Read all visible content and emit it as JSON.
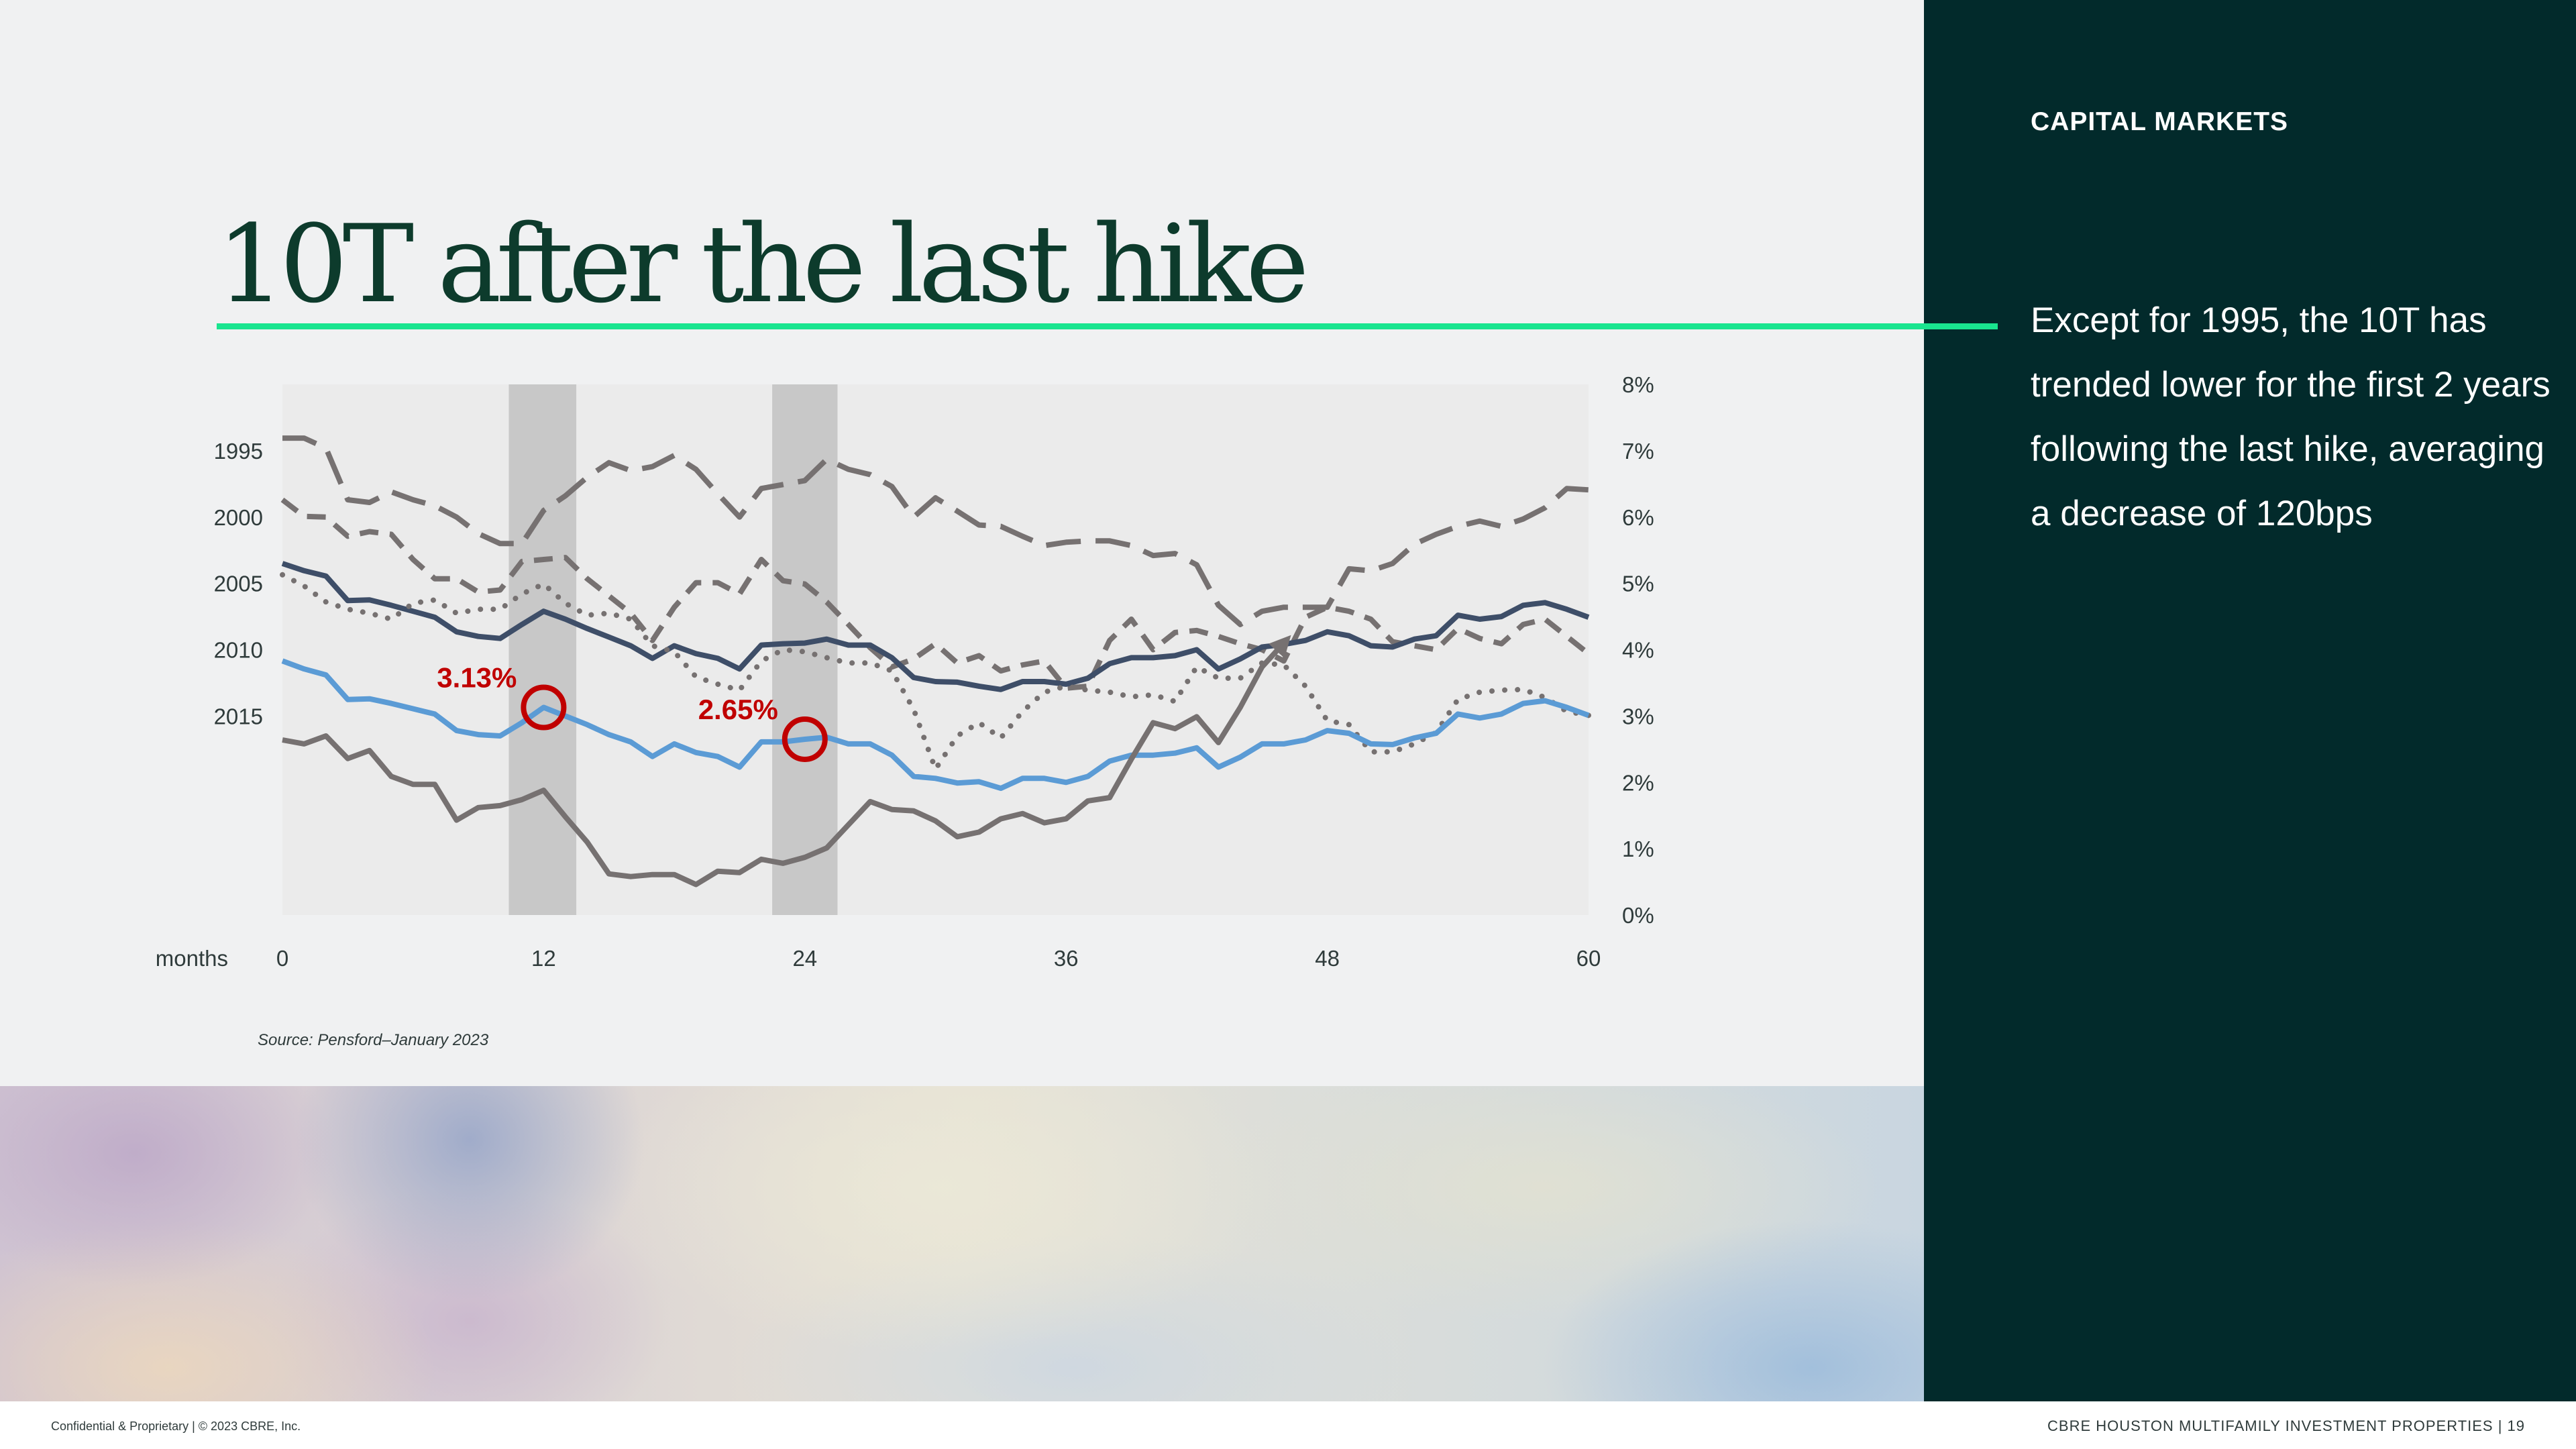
{
  "header": {
    "section": "CAPITAL MARKETS",
    "title": "10T after the last hike"
  },
  "sidebar": {
    "text": "Except for 1995, the 10T has trended lower for the first 2 years following the last hike, averaging a decrease of 120bps"
  },
  "source": "Source:  Pensford–January 2023",
  "footer": {
    "left": "Confidential & Proprietary  |  © 2023 CBRE, Inc.",
    "right": "CBRE HOUSTON MULTIFAMILY INVESTMENT PROPERTIES   |   19"
  },
  "colors": {
    "accent": "#19e58f",
    "panel": "#022a2b",
    "title": "#0d3b2c",
    "gray": "#767171",
    "navy": "#3e4e68",
    "blue": "#5b9bd5",
    "highlight": "#c00000",
    "band": "#c8c8c8",
    "plot_bg": "#ebebeb"
  },
  "chart_data": {
    "type": "line",
    "xlabel": "months",
    "x_ticks": [
      "0",
      "12",
      "24",
      "36",
      "48",
      "60"
    ],
    "xlim": [
      0,
      60
    ],
    "y_ticks": [
      "0%",
      "1%",
      "2%",
      "3%",
      "4%",
      "5%",
      "6%",
      "7%",
      "8%"
    ],
    "ylim": [
      0,
      8
    ],
    "y_axis_side": "right",
    "grid": false,
    "row_labels": [
      "1995",
      "2000",
      "2005",
      "2010",
      "2015"
    ],
    "shaded_bands": [
      [
        10.4,
        13.5
      ],
      [
        22.5,
        25.5
      ]
    ],
    "series": [
      {
        "style": "long-dash",
        "color": "#767171",
        "values": [
          7.19,
          7.19,
          7.04,
          6.26,
          6.22,
          6.38,
          6.26,
          6.17,
          6.0,
          5.75,
          5.6,
          5.6,
          6.1,
          6.32,
          6.6,
          6.82,
          6.7,
          6.76,
          6.93,
          6.72,
          6.35,
          6.0,
          6.43,
          6.49,
          6.55,
          6.87,
          6.72,
          6.64,
          6.46,
          6.0,
          6.29,
          6.09,
          5.88,
          5.86,
          5.71,
          5.57,
          5.62,
          5.64,
          5.64,
          5.57,
          5.42,
          5.45,
          5.28,
          4.67,
          4.38,
          4.58,
          4.64,
          4.64,
          4.64,
          5.22,
          5.19,
          5.3,
          5.59,
          5.74,
          5.86,
          5.94,
          5.86,
          5.97,
          6.14,
          6.43,
          6.41
        ]
      },
      {
        "style": "dash",
        "color": "#767171",
        "values": [
          6.26,
          6.01,
          6.0,
          5.71,
          5.78,
          5.74,
          5.36,
          5.07,
          5.07,
          4.87,
          4.9,
          5.33,
          5.36,
          5.39,
          5.07,
          4.81,
          4.55,
          4.14,
          4.64,
          5.01,
          5.01,
          4.84,
          5.36,
          5.04,
          4.99,
          4.72,
          4.38,
          4.03,
          3.74,
          3.86,
          4.09,
          3.8,
          3.91,
          3.68,
          3.77,
          3.83,
          3.42,
          3.45,
          4.14,
          4.46,
          4.0,
          4.26,
          4.29,
          4.2,
          4.09,
          4.0,
          3.83,
          4.49,
          4.64,
          4.58,
          4.46,
          4.12,
          4.06,
          4.0,
          4.32,
          4.17,
          4.09,
          4.38,
          4.46,
          4.2,
          3.94
        ]
      },
      {
        "style": "solid",
        "color": "#3e4e68",
        "values": [
          5.3,
          5.19,
          5.11,
          4.74,
          4.75,
          4.67,
          4.58,
          4.49,
          4.27,
          4.2,
          4.17,
          4.38,
          4.58,
          4.46,
          4.32,
          4.19,
          4.06,
          3.87,
          4.06,
          3.94,
          3.87,
          3.71,
          4.07,
          4.09,
          4.1,
          4.16,
          4.07,
          4.07,
          3.88,
          3.58,
          3.52,
          3.51,
          3.45,
          3.4,
          3.52,
          3.52,
          3.48,
          3.57,
          3.79,
          3.88,
          3.88,
          3.91,
          4.0,
          3.71,
          3.86,
          4.04,
          4.08,
          4.14,
          4.27,
          4.21,
          4.06,
          4.04,
          4.16,
          4.21,
          4.52,
          4.46,
          4.5,
          4.67,
          4.71,
          4.61,
          4.49
        ]
      },
      {
        "style": "dotted",
        "color": "#767171",
        "values": [
          5.13,
          4.96,
          4.72,
          4.61,
          4.55,
          4.46,
          4.7,
          4.75,
          4.55,
          4.61,
          4.61,
          4.84,
          4.99,
          4.7,
          4.52,
          4.55,
          4.46,
          4.06,
          3.97,
          3.59,
          3.48,
          3.39,
          3.83,
          4.0,
          3.97,
          3.88,
          3.8,
          3.8,
          3.68,
          3.1,
          2.2,
          2.7,
          2.9,
          2.67,
          3.07,
          3.36,
          3.45,
          3.39,
          3.36,
          3.29,
          3.32,
          3.22,
          3.74,
          3.57,
          3.57,
          3.8,
          3.77,
          3.45,
          2.93,
          2.87,
          2.46,
          2.46,
          2.58,
          2.75,
          3.25,
          3.36,
          3.39,
          3.4,
          3.28,
          3.07,
          3.01
        ]
      },
      {
        "style": "solid",
        "color": "#5b9bd5",
        "values": [
          3.83,
          3.71,
          3.62,
          3.25,
          3.26,
          3.19,
          3.11,
          3.03,
          2.78,
          2.72,
          2.7,
          2.9,
          3.13,
          3.0,
          2.87,
          2.72,
          2.61,
          2.39,
          2.58,
          2.45,
          2.39,
          2.23,
          2.61,
          2.61,
          2.65,
          2.68,
          2.58,
          2.58,
          2.41,
          2.09,
          2.06,
          1.99,
          2.01,
          1.91,
          2.06,
          2.06,
          2.0,
          2.09,
          2.32,
          2.41,
          2.41,
          2.44,
          2.52,
          2.23,
          2.38,
          2.58,
          2.58,
          2.64,
          2.78,
          2.74,
          2.58,
          2.57,
          2.67,
          2.74,
          3.03,
          2.97,
          3.03,
          3.19,
          3.23,
          3.13,
          3.01
        ]
      },
      {
        "style": "solid-arrow",
        "color": "#767171",
        "values": [
          2.64,
          2.58,
          2.7,
          2.36,
          2.48,
          2.09,
          1.97,
          1.97,
          1.43,
          1.62,
          1.65,
          1.74,
          1.88,
          1.48,
          1.1,
          0.62,
          0.58,
          0.61,
          0.61,
          0.46,
          0.66,
          0.64,
          0.84,
          0.78,
          0.87,
          1.01,
          1.36,
          1.71,
          1.59,
          1.57,
          1.42,
          1.18,
          1.25,
          1.45,
          1.53,
          1.39,
          1.45,
          1.72,
          1.77,
          2.35,
          2.9,
          2.81,
          2.99,
          2.6,
          3.13,
          3.74,
          4.1
        ]
      }
    ],
    "annotations": [
      {
        "month": 12,
        "value": 3.13,
        "label": "3.13%"
      },
      {
        "month": 24,
        "value": 2.65,
        "label": "2.65%"
      }
    ]
  }
}
